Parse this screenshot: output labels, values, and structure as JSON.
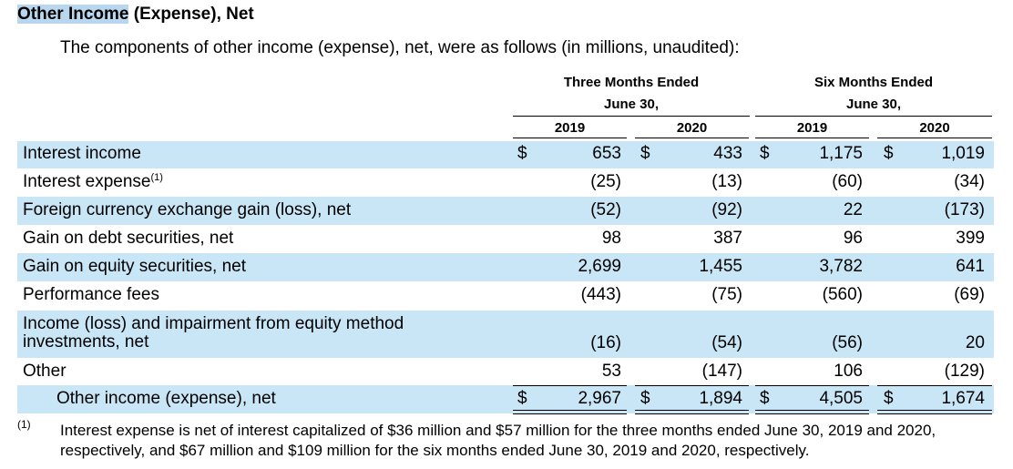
{
  "title": {
    "highlighted": "Other Income",
    "rest": " (Expense), Net"
  },
  "subtitle": "The components of other income (expense), net, were as follows (in millions, unaudited):",
  "headers": {
    "group1_line1": "Three Months Ended",
    "group1_line2": "June 30,",
    "group2_line1": "Six Months Ended",
    "group2_line2": "June 30,",
    "years": [
      "2019",
      "2020",
      "2019",
      "2020"
    ]
  },
  "currency_symbol": "$",
  "rows": [
    {
      "label": "Interest income",
      "values": [
        "653",
        "433",
        "1,175",
        "1,019"
      ]
    },
    {
      "label": "Interest expense",
      "superscript": "(1)",
      "values": [
        "(25)",
        "(13)",
        "(60)",
        "(34)"
      ]
    },
    {
      "label": "Foreign currency exchange gain (loss), net",
      "values": [
        "(52)",
        "(92)",
        "22",
        "(173)"
      ]
    },
    {
      "label": "Gain on debt securities, net",
      "values": [
        "98",
        "387",
        "96",
        "399"
      ]
    },
    {
      "label": "Gain on equity securities, net",
      "values": [
        "2,699",
        "1,455",
        "3,782",
        "641"
      ]
    },
    {
      "label": "Performance fees",
      "values": [
        "(443)",
        "(75)",
        "(560)",
        "(69)"
      ]
    },
    {
      "label_line1": "Income (loss) and impairment from equity method",
      "label_line2": "investments, net",
      "values": [
        "(16)",
        "(54)",
        "(56)",
        "20"
      ]
    },
    {
      "label": "Other",
      "values": [
        "53",
        "(147)",
        "106",
        "(129)"
      ]
    },
    {
      "label": "Other income (expense), net",
      "values": [
        "2,967",
        "1,894",
        "4,505",
        "1,674"
      ]
    }
  ],
  "footnote": {
    "marker": "(1)",
    "text": "Interest expense is net of interest capitalized of $36 million and $57 million for the three months ended June 30, 2019 and 2020, respectively, and $67 million and $109 million for the six months ended June 30, 2019 and 2020, respectively."
  },
  "colors": {
    "row_shade": "#c9e6f6",
    "title_highlight": "#b8d6ee"
  }
}
